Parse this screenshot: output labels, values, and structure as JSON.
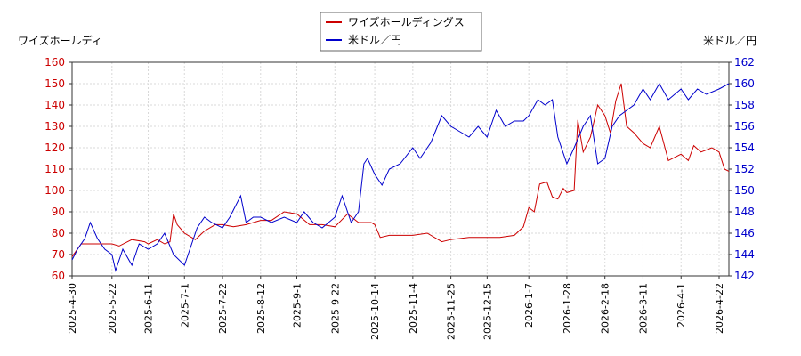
{
  "chart_data": {
    "type": "line",
    "left_axis_label": "ワイズホールディ",
    "right_axis_label": "米ドル／円",
    "legend_position": "top-center",
    "grid": true,
    "x_ticks": [
      "2025-4-30",
      "2025-5-22",
      "2025-6-11",
      "2025-7-1",
      "2025-7-22",
      "2025-8-12",
      "2025-9-1",
      "2025-9-22",
      "2025-10-14",
      "2025-11-4",
      "2025-11-25",
      "2025-12-15",
      "2026-1-7",
      "2026-1-28",
      "2026-2-18",
      "2026-3-11",
      "2026-4-1",
      "2026-4-22"
    ],
    "left_ylim": [
      60,
      160
    ],
    "left_ticks": [
      60,
      70,
      80,
      90,
      100,
      110,
      120,
      130,
      140,
      150,
      160
    ],
    "right_ylim": [
      142,
      162
    ],
    "right_ticks": [
      142,
      144,
      146,
      148,
      150,
      152,
      154,
      156,
      158,
      160,
      162
    ],
    "series": [
      {
        "name": "ワイズホールディングス",
        "axis": "left",
        "color": "#cc0000",
        "points": [
          [
            "2025-4-30",
            69
          ],
          [
            "2025-5-5",
            75
          ],
          [
            "2025-5-12",
            75
          ],
          [
            "2025-5-22",
            75
          ],
          [
            "2025-5-26",
            74
          ],
          [
            "2025-6-2",
            77
          ],
          [
            "2025-6-9",
            76
          ],
          [
            "2025-6-11",
            75
          ],
          [
            "2025-6-16",
            77
          ],
          [
            "2025-6-20",
            75
          ],
          [
            "2025-6-23",
            76
          ],
          [
            "2025-6-25",
            89
          ],
          [
            "2025-6-27",
            84
          ],
          [
            "2025-7-1",
            80
          ],
          [
            "2025-7-7",
            77
          ],
          [
            "2025-7-12",
            81
          ],
          [
            "2025-7-18",
            84
          ],
          [
            "2025-7-22",
            84
          ],
          [
            "2025-7-28",
            83
          ],
          [
            "2025-8-4",
            84
          ],
          [
            "2025-8-12",
            86
          ],
          [
            "2025-8-18",
            86
          ],
          [
            "2025-8-25",
            90
          ],
          [
            "2025-9-1",
            89
          ],
          [
            "2025-9-8",
            84
          ],
          [
            "2025-9-15",
            84
          ],
          [
            "2025-9-22",
            83
          ],
          [
            "2025-9-29",
            89
          ],
          [
            "2025-10-5",
            85
          ],
          [
            "2025-10-12",
            85
          ],
          [
            "2025-10-14",
            84
          ],
          [
            "2025-10-17",
            78
          ],
          [
            "2025-10-22",
            79
          ],
          [
            "2025-11-4",
            79
          ],
          [
            "2025-11-12",
            80
          ],
          [
            "2025-11-20",
            76
          ],
          [
            "2025-11-25",
            77
          ],
          [
            "2025-12-5",
            78
          ],
          [
            "2025-12-15",
            78
          ],
          [
            "2025-12-22",
            78
          ],
          [
            "2025-12-30",
            79
          ],
          [
            "2026-1-4",
            83
          ],
          [
            "2026-1-7",
            92
          ],
          [
            "2026-1-10",
            90
          ],
          [
            "2026-1-13",
            103
          ],
          [
            "2026-1-17",
            104
          ],
          [
            "2026-1-20",
            97
          ],
          [
            "2026-1-23",
            96
          ],
          [
            "2026-1-26",
            101
          ],
          [
            "2026-1-28",
            99
          ],
          [
            "2026-2-1",
            100
          ],
          [
            "2026-2-3",
            133
          ],
          [
            "2026-2-6",
            118
          ],
          [
            "2026-2-10",
            125
          ],
          [
            "2026-2-14",
            140
          ],
          [
            "2026-2-18",
            135
          ],
          [
            "2026-2-21",
            127
          ],
          [
            "2026-2-24",
            142
          ],
          [
            "2026-2-27",
            150
          ],
          [
            "2026-3-2",
            130
          ],
          [
            "2026-3-6",
            127
          ],
          [
            "2026-3-11",
            122
          ],
          [
            "2026-3-15",
            120
          ],
          [
            "2026-3-20",
            130
          ],
          [
            "2026-3-25",
            114
          ],
          [
            "2026-4-1",
            117
          ],
          [
            "2026-4-5",
            114
          ],
          [
            "2026-4-8",
            121
          ],
          [
            "2026-4-12",
            118
          ],
          [
            "2026-4-18",
            120
          ],
          [
            "2026-4-22",
            118
          ],
          [
            "2026-4-25",
            110
          ],
          [
            "2026-4-28",
            109
          ]
        ]
      },
      {
        "name": "米ドル／円",
        "axis": "right",
        "color": "#0000cc",
        "points": [
          [
            "2025-4-30",
            143.5
          ],
          [
            "2025-5-3",
            144.5
          ],
          [
            "2025-5-7",
            145.5
          ],
          [
            "2025-5-10",
            147
          ],
          [
            "2025-5-14",
            145.5
          ],
          [
            "2025-5-18",
            144.5
          ],
          [
            "2025-5-22",
            144
          ],
          [
            "2025-5-24",
            142.5
          ],
          [
            "2025-5-28",
            144.5
          ],
          [
            "2025-6-2",
            143
          ],
          [
            "2025-6-6",
            145
          ],
          [
            "2025-6-11",
            144.5
          ],
          [
            "2025-6-16",
            145
          ],
          [
            "2025-6-20",
            146
          ],
          [
            "2025-6-25",
            144
          ],
          [
            "2025-7-1",
            143
          ],
          [
            "2025-7-4",
            144.5
          ],
          [
            "2025-7-8",
            146.5
          ],
          [
            "2025-7-12",
            147.5
          ],
          [
            "2025-7-16",
            147
          ],
          [
            "2025-7-22",
            146.5
          ],
          [
            "2025-7-26",
            147.5
          ],
          [
            "2025-8-1",
            149.5
          ],
          [
            "2025-8-4",
            147
          ],
          [
            "2025-8-8",
            147.5
          ],
          [
            "2025-8-12",
            147.5
          ],
          [
            "2025-8-18",
            147
          ],
          [
            "2025-8-25",
            147.5
          ],
          [
            "2025-9-1",
            147
          ],
          [
            "2025-9-5",
            148
          ],
          [
            "2025-9-10",
            147
          ],
          [
            "2025-9-15",
            146.5
          ],
          [
            "2025-9-22",
            147.5
          ],
          [
            "2025-9-26",
            149.5
          ],
          [
            "2025-10-1",
            147
          ],
          [
            "2025-10-5",
            148
          ],
          [
            "2025-10-8",
            152.5
          ],
          [
            "2025-10-10",
            153
          ],
          [
            "2025-10-14",
            151.5
          ],
          [
            "2025-10-18",
            150.5
          ],
          [
            "2025-10-22",
            152
          ],
          [
            "2025-10-28",
            152.5
          ],
          [
            "2025-11-4",
            154
          ],
          [
            "2025-11-8",
            153
          ],
          [
            "2025-11-14",
            154.5
          ],
          [
            "2025-11-20",
            157
          ],
          [
            "2025-11-25",
            156
          ],
          [
            "2025-11-30",
            155.5
          ],
          [
            "2025-12-5",
            155
          ],
          [
            "2025-12-10",
            156
          ],
          [
            "2025-12-15",
            155
          ],
          [
            "2025-12-20",
            157.5
          ],
          [
            "2025-12-25",
            156
          ],
          [
            "2025-12-30",
            156.5
          ],
          [
            "2026-1-4",
            156.5
          ],
          [
            "2026-1-7",
            157
          ],
          [
            "2026-1-12",
            158.5
          ],
          [
            "2026-1-16",
            158
          ],
          [
            "2026-1-20",
            158.5
          ],
          [
            "2026-1-23",
            155
          ],
          [
            "2026-1-28",
            152.5
          ],
          [
            "2026-2-1",
            154
          ],
          [
            "2026-2-6",
            156
          ],
          [
            "2026-2-10",
            157
          ],
          [
            "2026-2-14",
            152.5
          ],
          [
            "2026-2-18",
            153
          ],
          [
            "2026-2-22",
            156
          ],
          [
            "2026-2-26",
            157
          ],
          [
            "2026-3-2",
            157.5
          ],
          [
            "2026-3-6",
            158
          ],
          [
            "2026-3-11",
            159.5
          ],
          [
            "2026-3-15",
            158.5
          ],
          [
            "2026-3-20",
            160
          ],
          [
            "2026-3-25",
            158.5
          ],
          [
            "2026-4-1",
            159.5
          ],
          [
            "2026-4-5",
            158.5
          ],
          [
            "2026-4-10",
            159.5
          ],
          [
            "2026-4-15",
            159
          ],
          [
            "2026-4-22",
            159.5
          ],
          [
            "2026-4-28",
            160
          ]
        ]
      }
    ]
  }
}
